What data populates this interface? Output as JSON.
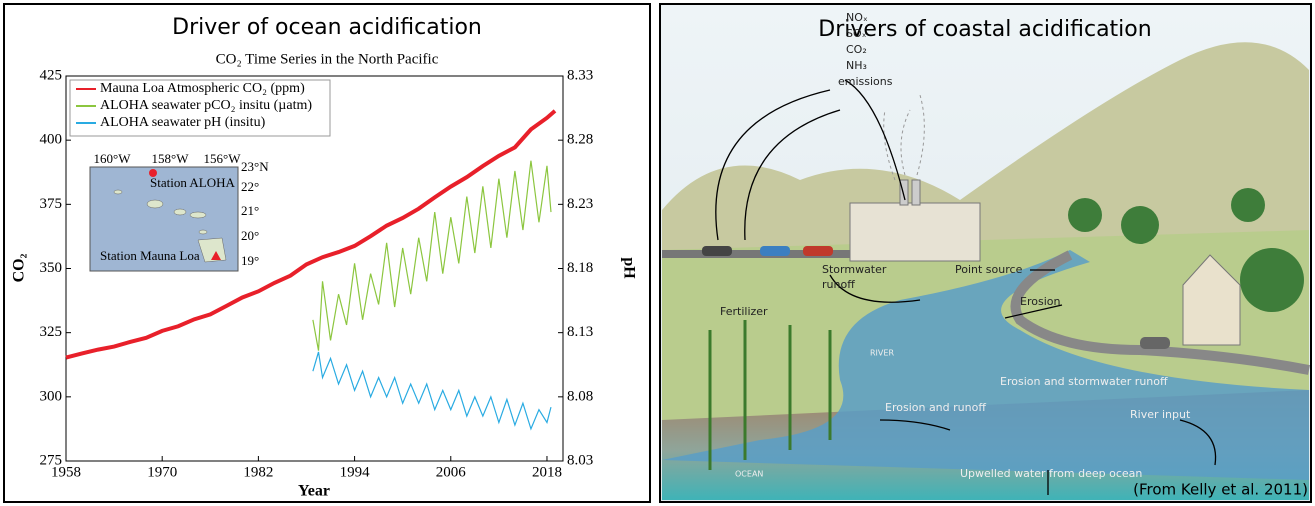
{
  "chart_data": {
    "type": "line",
    "title": "Driver of ocean acidification",
    "subtitle": "CO₂ Time Series in the North Pacific",
    "xlabel": "Year",
    "ylabel": "CO₂",
    "y2label": "pH",
    "xlim": [
      1958,
      2020
    ],
    "xticks": [
      1958,
      1970,
      1982,
      1994,
      2006,
      2018
    ],
    "ylim": [
      275,
      425
    ],
    "yticks": [
      275,
      300,
      325,
      350,
      375,
      400,
      425
    ],
    "y2lim": [
      8.03,
      8.33
    ],
    "y2ticks": [
      8.03,
      8.08,
      8.13,
      8.18,
      8.23,
      8.28,
      8.33
    ],
    "legend": "upper left",
    "series": [
      {
        "name": "Mauna Loa Atmospheric CO₂ (ppm)",
        "color": "#e8202a",
        "x": [
          1958,
          1960,
          1962,
          1964,
          1966,
          1968,
          1970,
          1972,
          1974,
          1976,
          1978,
          1980,
          1982,
          1984,
          1986,
          1988,
          1990,
          1992,
          1994,
          1996,
          1998,
          2000,
          2002,
          2004,
          2006,
          2008,
          2010,
          2012,
          2014,
          2016,
          2018,
          2019
        ],
        "values": [
          315.3,
          316.9,
          318.4,
          319.6,
          321.4,
          323.0,
          325.7,
          327.5,
          330.2,
          332.1,
          335.4,
          338.7,
          341.1,
          344.4,
          347.2,
          351.6,
          354.4,
          356.4,
          358.8,
          362.6,
          366.7,
          369.7,
          373.3,
          377.7,
          381.9,
          385.6,
          389.9,
          393.9,
          397.2,
          404.2,
          408.7,
          411.4
        ]
      },
      {
        "name": "ALOHA seawater pCO₂ insitu (µatm)",
        "color": "#8cc63f",
        "x": [
          1988.8,
          1989.5,
          1990,
          1991,
          1992,
          1993,
          1994,
          1995,
          1996,
          1997,
          1998,
          1999,
          2000,
          2001,
          2002,
          2003,
          2004,
          2005,
          2006,
          2007,
          2008,
          2009,
          2010,
          2011,
          2012,
          2013,
          2014,
          2015,
          2016,
          2017,
          2018,
          2018.5
        ],
        "values": [
          330,
          318,
          345,
          322,
          340,
          328,
          352,
          330,
          348,
          336,
          360,
          335,
          358,
          340,
          362,
          345,
          372,
          348,
          370,
          352,
          378,
          356,
          382,
          358,
          385,
          362,
          388,
          365,
          392,
          368,
          390,
          372
        ]
      },
      {
        "name": "ALOHA seawater pH (insitu)",
        "color": "#29abe2",
        "axis": "y2",
        "x": [
          1988.8,
          1989.5,
          1990,
          1991,
          1992,
          1993,
          1994,
          1995,
          1996,
          1997,
          1998,
          1999,
          2000,
          2001,
          2002,
          2003,
          2004,
          2005,
          2006,
          2007,
          2008,
          2009,
          2010,
          2011,
          2012,
          2013,
          2014,
          2015,
          2016,
          2017,
          2018,
          2018.5
        ],
        "values": [
          8.1,
          8.115,
          8.095,
          8.11,
          8.09,
          8.105,
          8.085,
          8.1,
          8.08,
          8.095,
          8.08,
          8.095,
          8.075,
          8.09,
          8.075,
          8.09,
          8.07,
          8.085,
          8.07,
          8.085,
          8.065,
          8.08,
          8.065,
          8.08,
          8.06,
          8.078,
          8.058,
          8.075,
          8.055,
          8.07,
          8.06,
          8.072
        ]
      }
    ],
    "inset_labels": [
      "160°W",
      "158°W",
      "156°W",
      "23°N",
      "22°",
      "21°",
      "20°",
      "19°",
      "Station ALOHA",
      "Station Mauna Loa"
    ]
  },
  "diagram": {
    "title": "Drivers of coastal acidification",
    "labels": [
      "NOₓ",
      "SOₓ",
      "CO₂",
      "NH₃",
      "emissions",
      "Stormwater",
      "runoff",
      "Point source",
      "Fertilizer",
      "Erosion",
      "RIVER",
      "Erosion and stormwater runoff",
      "Erosion and runoff",
      "River input",
      "OCEAN",
      "Upwelled water from deep ocean"
    ],
    "credit": "(From Kelly et al. 2011)"
  }
}
